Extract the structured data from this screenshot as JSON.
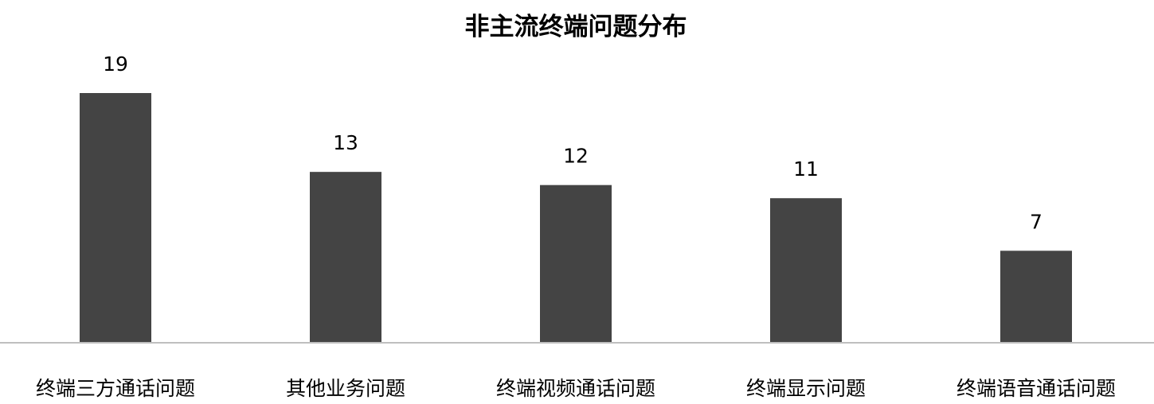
{
  "chart_data": {
    "type": "bar",
    "title": "非主流终端问题分布",
    "categories": [
      "终端三方通话问题",
      "其他业务问题",
      "终端视频通话问题",
      "终端显示问题",
      "终端语音通话问题"
    ],
    "values": [
      19,
      13,
      12,
      11,
      7
    ],
    "xlabel": "",
    "ylabel": "",
    "ylim": [
      0,
      19
    ],
    "grid": false,
    "data_labels": true,
    "colors": {
      "bar": "#444444",
      "axis": "#bfbfbf",
      "text": "#000000"
    }
  }
}
